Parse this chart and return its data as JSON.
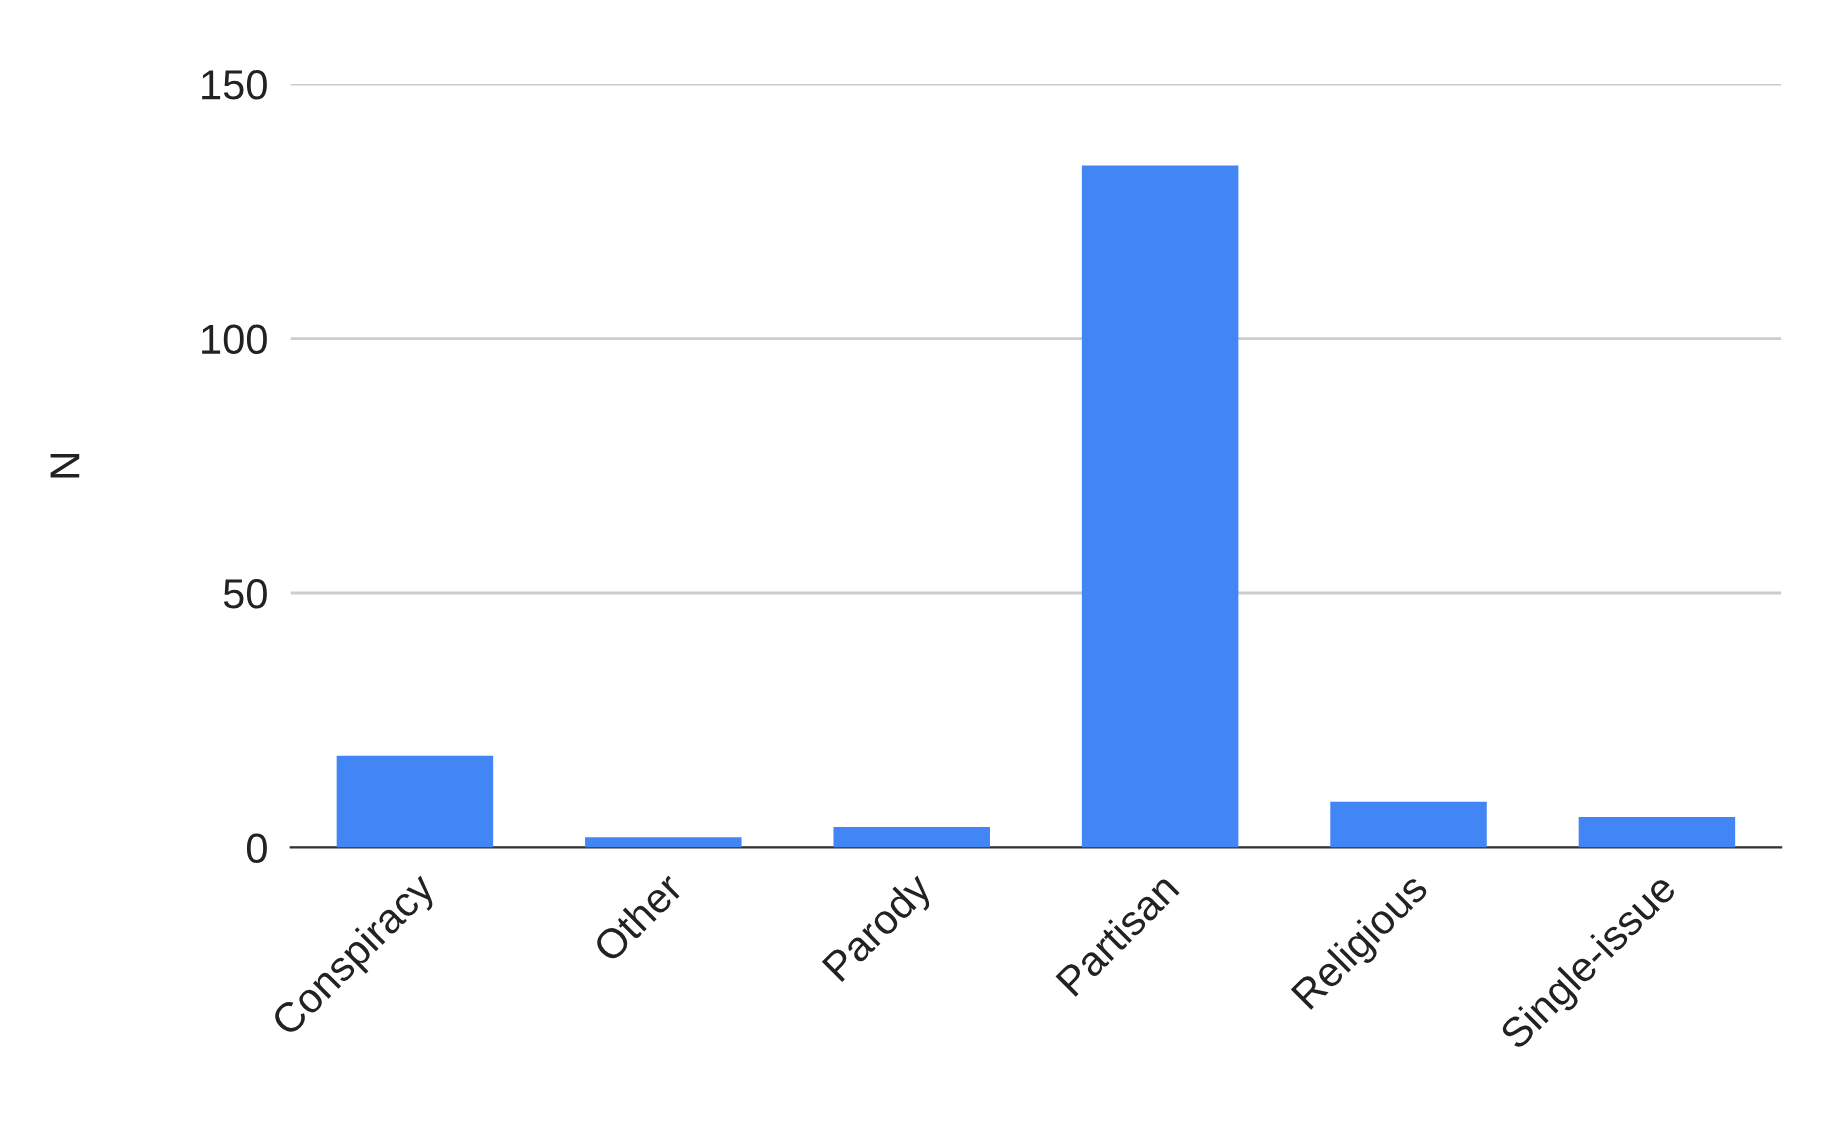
{
  "chart_data": {
    "type": "bar",
    "ylabel": "N",
    "categories": [
      "Conspiracy",
      "Other",
      "Parody",
      "Partisan",
      "Religious",
      "Single-issue"
    ],
    "values": [
      18,
      2,
      4,
      134,
      9,
      6
    ],
    "color": "#4285f4",
    "ylim": [
      0,
      150
    ],
    "yticks": [
      0,
      50,
      100,
      150
    ],
    "grid": "y"
  }
}
